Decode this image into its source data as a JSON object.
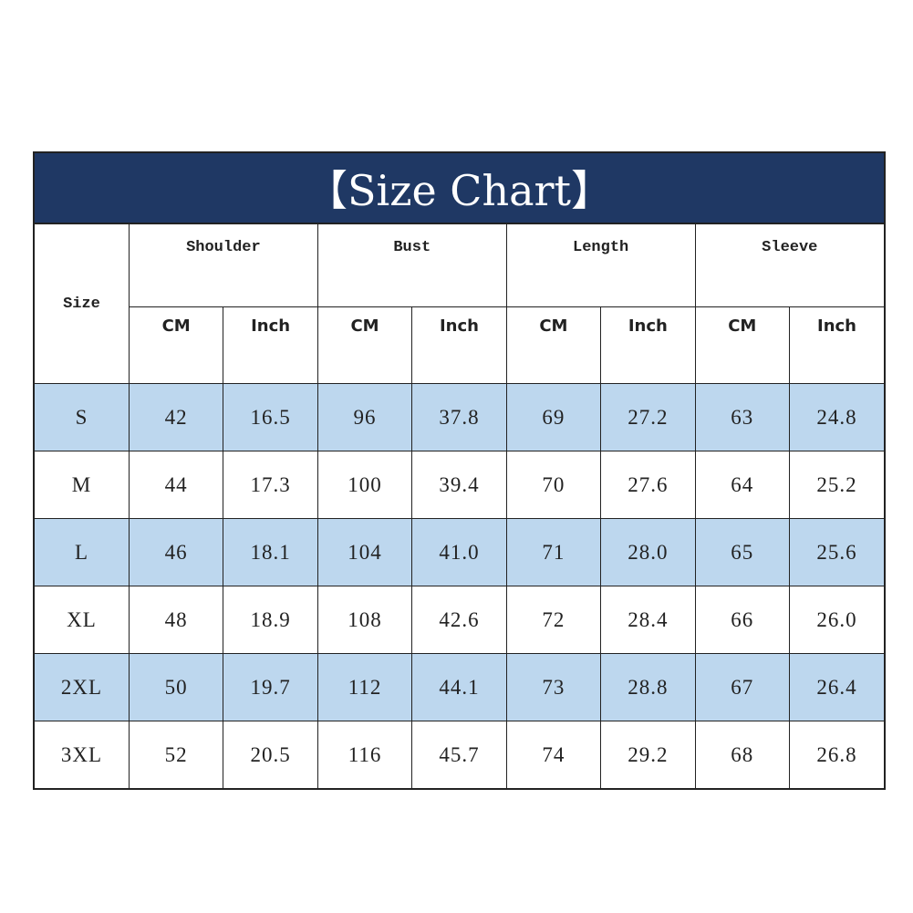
{
  "title": "【Size Chart】",
  "size_header": "Size",
  "groups": [
    "Shoulder",
    "Bust",
    "Length",
    "Sleeve"
  ],
  "units": [
    "CM",
    "Inch"
  ],
  "colors": {
    "title_bg": "#1f3864",
    "alt_row": "#bdd7ee"
  },
  "rows": [
    {
      "size": "S",
      "values": [
        "42",
        "16.5",
        "96",
        "37.8",
        "69",
        "27.2",
        "63",
        "24.8"
      ]
    },
    {
      "size": "M",
      "values": [
        "44",
        "17.3",
        "100",
        "39.4",
        "70",
        "27.6",
        "64",
        "25.2"
      ]
    },
    {
      "size": "L",
      "values": [
        "46",
        "18.1",
        "104",
        "41.0",
        "71",
        "28.0",
        "65",
        "25.6"
      ]
    },
    {
      "size": "XL",
      "values": [
        "48",
        "18.9",
        "108",
        "42.6",
        "72",
        "28.4",
        "66",
        "26.0"
      ]
    },
    {
      "size": "2XL",
      "values": [
        "50",
        "19.7",
        "112",
        "44.1",
        "73",
        "28.8",
        "67",
        "26.4"
      ]
    },
    {
      "size": "3XL",
      "values": [
        "52",
        "20.5",
        "116",
        "45.7",
        "74",
        "29.2",
        "68",
        "26.8"
      ]
    }
  ]
}
